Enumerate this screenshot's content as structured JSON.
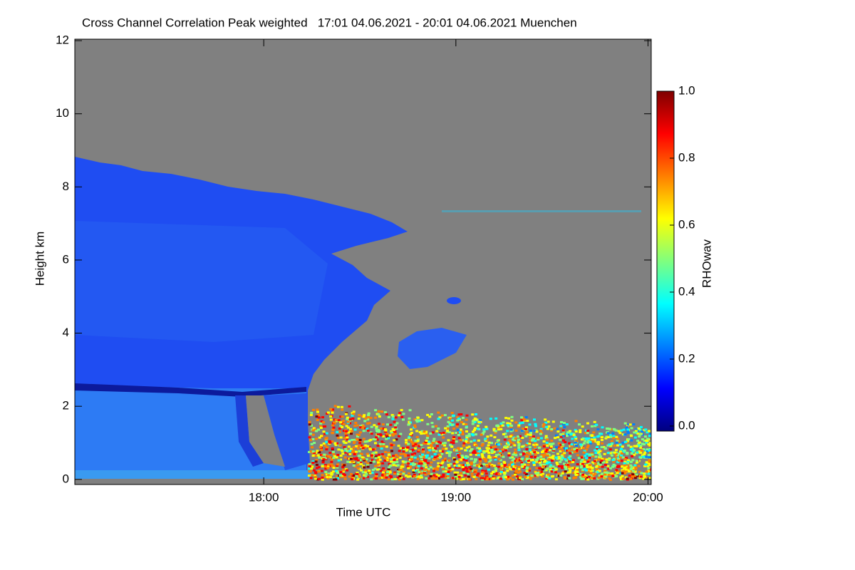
{
  "chart_data": {
    "type": "heatmap",
    "title": "Cross Channel Correlation Peak weighted   17:01 04.06.2021 - 20:01 04.06.2021 Muenchen",
    "x_label": "Time UTC",
    "y_label": "Height km",
    "xlim": [
      17.0167,
      20.0167
    ],
    "xticks": [
      {
        "value": 18,
        "label": "18:00"
      },
      {
        "value": 19,
        "label": "19:00"
      },
      {
        "value": 20,
        "label": "20:00"
      }
    ],
    "ylim": [
      -0.14,
      12.04
    ],
    "yticks": [
      0,
      2,
      4,
      6,
      8,
      10,
      12
    ],
    "colorbar": {
      "label": "RHOwav",
      "clim": [
        -0.015,
        1.0
      ],
      "ticks": [
        {
          "value": 0,
          "label": "0.0"
        },
        0.2,
        0.4,
        0.6,
        0.8,
        {
          "value": 1,
          "label": "1.0"
        }
      ],
      "colormap": [
        "#00007f",
        "#0000ff",
        "#007fff",
        "#00ffff",
        "#7fff7f",
        "#ffff00",
        "#ff7f00",
        "#ff0000",
        "#7f0000"
      ]
    }
  }
}
